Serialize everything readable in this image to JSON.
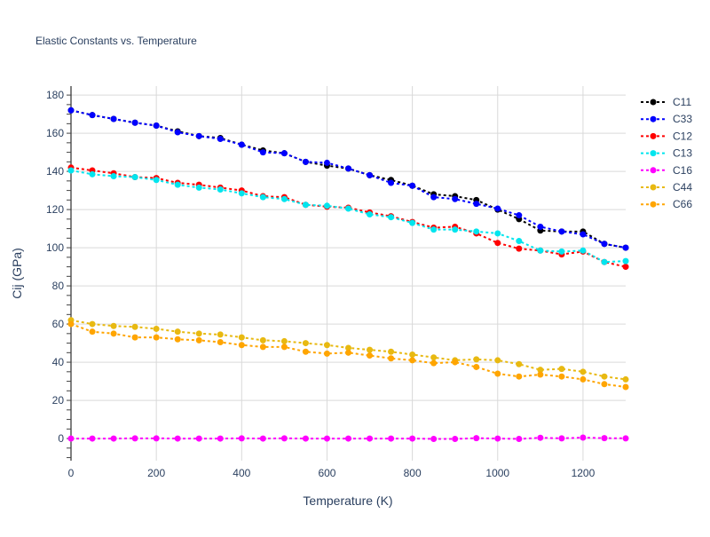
{
  "chart_data": {
    "type": "line",
    "title": "Elastic Constants vs. Temperature",
    "xlabel": "Temperature (K)",
    "ylabel": "Cij (GPa)",
    "xlim": [
      0,
      1300
    ],
    "ylim": [
      -11.6,
      184.7
    ],
    "xticks": [
      0,
      200,
      400,
      600,
      800,
      1000,
      1200
    ],
    "yticks": [
      0,
      20,
      40,
      60,
      80,
      100,
      120,
      140,
      160,
      180
    ],
    "grid": true,
    "legend_position": "right",
    "x": [
      0,
      50,
      100,
      150,
      200,
      250,
      300,
      350,
      400,
      450,
      500,
      550,
      600,
      650,
      700,
      750,
      800,
      850,
      900,
      950,
      1000,
      1050,
      1100,
      1150,
      1200,
      1250,
      1300
    ],
    "series": [
      {
        "name": "C11",
        "color": "#000000",
        "values": [
          172,
          169.5,
          167.5,
          165.5,
          164,
          161,
          158.5,
          157.5,
          154,
          151,
          149.5,
          145,
          143,
          141.5,
          138,
          135.5,
          132.5,
          128,
          127,
          125,
          120,
          115,
          109,
          108.5,
          108.5,
          102,
          100
        ]
      },
      {
        "name": "C33",
        "color": "#0000ff",
        "values": [
          172,
          169.5,
          167.5,
          165.5,
          164,
          160.5,
          158.5,
          157,
          154,
          150,
          149.5,
          145,
          144.5,
          141.5,
          138,
          134,
          132.5,
          126.5,
          125.5,
          123,
          120.5,
          117,
          111,
          108.5,
          107,
          102,
          100
        ]
      },
      {
        "name": "C12",
        "color": "#ff0000",
        "values": [
          142,
          140.5,
          139,
          137,
          136.5,
          134,
          133,
          131.5,
          130,
          127,
          126.5,
          122.5,
          121.5,
          121,
          118.5,
          116.5,
          113.5,
          110.5,
          111,
          107.5,
          102.5,
          99.5,
          98.5,
          96.5,
          98,
          92.5,
          90
        ]
      },
      {
        "name": "C13",
        "color": "#00e5ee",
        "values": [
          140.5,
          138.5,
          137.5,
          137,
          135.5,
          133,
          131.5,
          130.5,
          128.5,
          126.5,
          125.5,
          122.5,
          122,
          120.5,
          117.5,
          116,
          113,
          109.5,
          109.5,
          108.5,
          107.5,
          103.5,
          98.5,
          98,
          98.5,
          92.5,
          93
        ]
      },
      {
        "name": "C16",
        "color": "#ff00ff",
        "values": [
          0,
          0,
          0,
          0.1,
          0.1,
          0,
          0,
          0,
          0.1,
          0,
          0.1,
          0,
          0,
          0,
          0,
          0,
          0,
          -0.2,
          -0.2,
          0.2,
          0,
          -0.2,
          0.4,
          0.1,
          0.5,
          0.2,
          0.1
        ]
      },
      {
        "name": "C44",
        "color": "#e8b911",
        "values": [
          62,
          60,
          59,
          58.5,
          57.5,
          56,
          55,
          54.5,
          53,
          51.5,
          51,
          50,
          49,
          47.5,
          46.5,
          45.5,
          44,
          42.5,
          41,
          41.5,
          41,
          39,
          36,
          36.5,
          35,
          32.5,
          31
        ]
      },
      {
        "name": "C66",
        "color": "#ffa500",
        "values": [
          60,
          56,
          55,
          53,
          53,
          52,
          51.5,
          50.5,
          49,
          48,
          48,
          45.5,
          44.5,
          45,
          43.5,
          42,
          41,
          39.5,
          40,
          37.5,
          34,
          32.5,
          33.5,
          32.5,
          31,
          28.5,
          27
        ]
      }
    ]
  }
}
